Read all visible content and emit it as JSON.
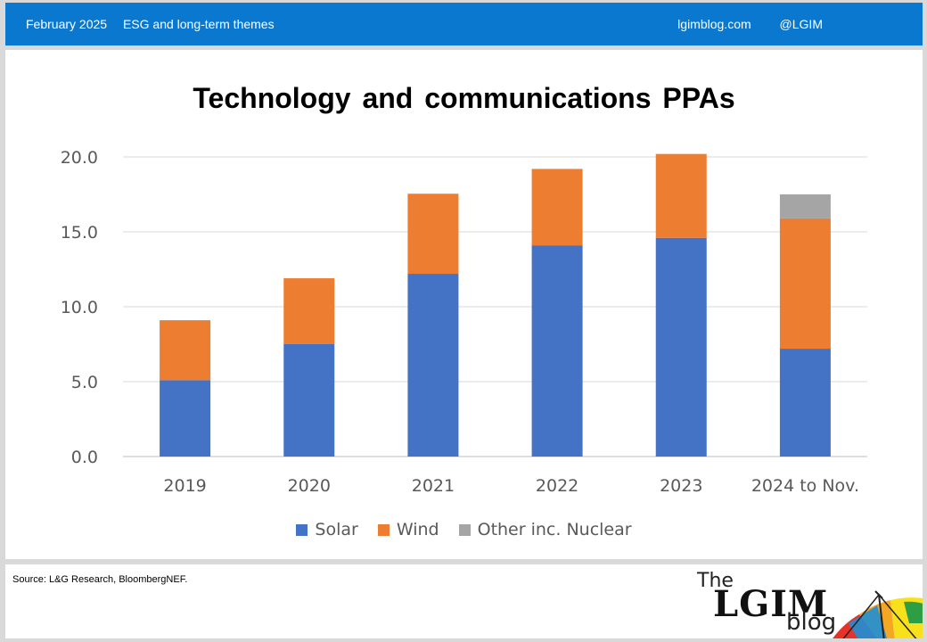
{
  "header": {
    "date": "February 2025",
    "category": "ESG and long-term themes",
    "site": "lgimblog.com",
    "handle": "@LGIM"
  },
  "footer": {
    "source": "Source: L&G Research, BloombergNEF.",
    "logo_the": "The",
    "logo_main": "LGIM",
    "logo_blog": "blog"
  },
  "colors": {
    "solar": "#4472c4",
    "wind": "#ed7d31",
    "other": "#a5a5a5",
    "header_bar": "#0b78d0"
  },
  "chart_data": {
    "type": "bar",
    "stacked": true,
    "title": "Technology and communications PPAs",
    "xlabel": "",
    "ylabel": "",
    "categories": [
      "2019",
      "2020",
      "2021",
      "2022",
      "2023",
      "2024 to Nov."
    ],
    "series": [
      {
        "name": "Solar",
        "values": [
          5.1,
          7.5,
          12.2,
          14.1,
          14.6,
          7.2
        ]
      },
      {
        "name": "Wind",
        "values": [
          4.0,
          4.4,
          5.3,
          5.1,
          5.6,
          8.7
        ]
      },
      {
        "name": "Other inc. Nuclear",
        "values": [
          0.0,
          0.0,
          0.05,
          0.0,
          0.0,
          1.6
        ]
      }
    ],
    "ylim": [
      0,
      20
    ],
    "yticks": [
      0,
      5,
      10,
      15,
      20
    ],
    "ytick_labels": [
      "0.0",
      "5.0",
      "10.0",
      "15.0",
      "20.0"
    ],
    "grid": true,
    "legend_position": "bottom"
  }
}
